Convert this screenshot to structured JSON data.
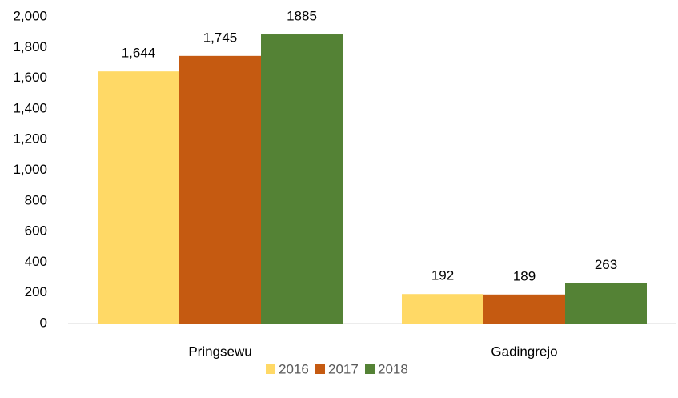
{
  "chart_data": {
    "type": "bar",
    "categories": [
      "Pringsewu",
      "Gadingrejo"
    ],
    "series": [
      {
        "name": "2016",
        "color": "#ffd966",
        "values": [
          1644,
          192
        ],
        "value_labels": [
          "1,644",
          "192"
        ]
      },
      {
        "name": "2017",
        "color": "#c55a11",
        "values": [
          1745,
          189
        ],
        "value_labels": [
          "1,745",
          "189"
        ]
      },
      {
        "name": "2018",
        "color": "#548235",
        "values": [
          1885,
          263
        ],
        "value_labels": [
          "1885",
          "263"
        ]
      }
    ],
    "ylim": [
      0,
      2000
    ],
    "yticks": [
      0,
      200,
      400,
      600,
      800,
      {
        "value": 1000,
        "label": "1,000"
      },
      {
        "value": 1200,
        "label": "1,200"
      },
      {
        "value": 1400,
        "label": "1,400"
      },
      {
        "value": 1600,
        "label": "1,600"
      },
      {
        "value": 1800,
        "label": "1,800"
      },
      {
        "value": 2000,
        "label": "2,000"
      }
    ],
    "legend": "bottom"
  }
}
